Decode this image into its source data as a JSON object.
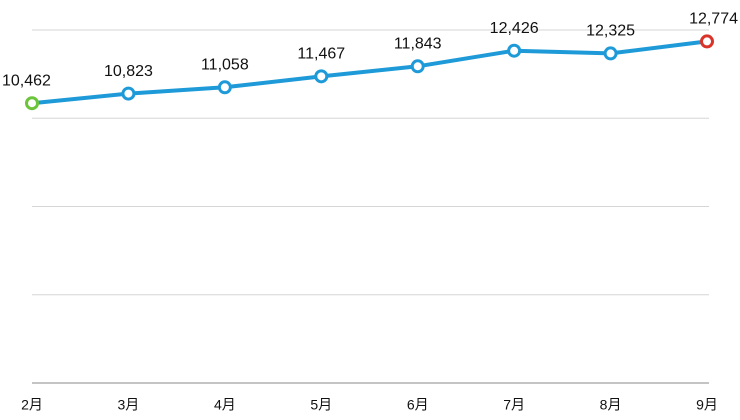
{
  "chart_data": {
    "type": "line",
    "categories": [
      "2月",
      "3月",
      "4月",
      "5月",
      "6月",
      "7月",
      "8月",
      "9月"
    ],
    "series": [
      {
        "color": "#1e9ad8",
        "values": [
          10462,
          10823,
          11058,
          11467,
          11843,
          12426,
          12325,
          12774
        ],
        "value_labels": [
          "10,462",
          "10,823",
          "11,058",
          "11,467",
          "11,843",
          "12,426",
          "12,325",
          "12,774"
        ]
      }
    ],
    "first_point_color": "#6cc43a",
    "last_point_color": "#d9332a",
    "ylim": [
      0,
      13200
    ],
    "yticks": [
      0,
      3300,
      6600,
      9900,
      13200
    ],
    "grid": true
  }
}
